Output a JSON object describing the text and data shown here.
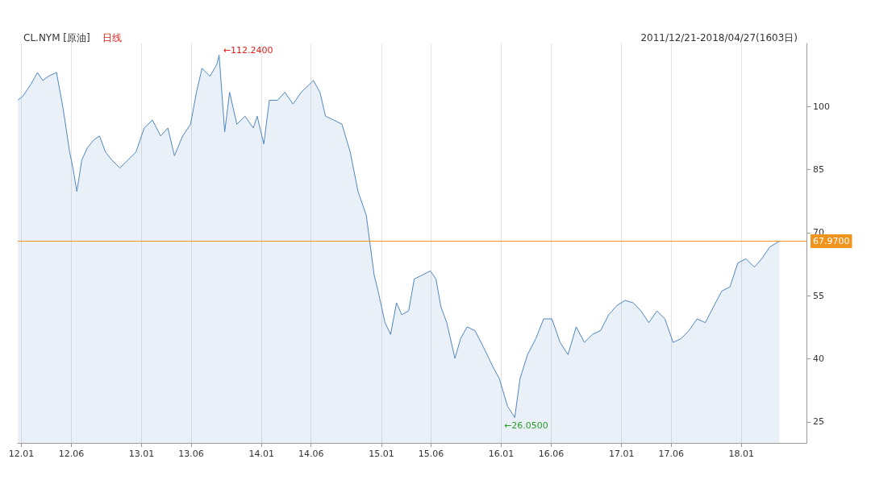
{
  "chart_data": {
    "type": "area",
    "title": "CL.NYM [原油]",
    "subtitle": "日线",
    "annotations": [
      "2011/12/21-2018/04/27(1603日)",
      {
        "text": "←112.2400",
        "x": "2013-08-25",
        "y": 112.24
      },
      {
        "text": "←26.0500",
        "x": "2016-02-11",
        "y": 26.05
      }
    ],
    "x": [
      "2011-12-21",
      "2012-01-06",
      "2012-01-30",
      "2012-02-19",
      "2012-03-06",
      "2012-03-23",
      "2012-04-17",
      "2012-05-07",
      "2012-05-27",
      "2012-06-06",
      "2012-06-18",
      "2012-07-03",
      "2012-07-20",
      "2012-08-09",
      "2012-08-26",
      "2012-09-13",
      "2012-10-02",
      "2012-10-27",
      "2012-11-21",
      "2012-12-15",
      "2013-01-09",
      "2013-02-03",
      "2013-02-28",
      "2013-03-22",
      "2013-04-11",
      "2013-05-06",
      "2013-05-30",
      "2013-06-17",
      "2013-07-04",
      "2013-07-28",
      "2013-08-18",
      "2013-08-25",
      "2013-09-11",
      "2013-09-26",
      "2013-10-18",
      "2013-11-12",
      "2013-12-07",
      "2013-12-19",
      "2014-01-08",
      "2014-01-25",
      "2014-02-19",
      "2014-03-13",
      "2014-04-07",
      "2014-05-02",
      "2014-06-08",
      "2014-06-28",
      "2014-07-15",
      "2014-08-09",
      "2014-09-03",
      "2014-09-28",
      "2014-10-22",
      "2014-11-16",
      "2014-12-10",
      "2014-12-22",
      "2015-01-12",
      "2015-01-29",
      "2015-02-16",
      "2015-03-04",
      "2015-03-25",
      "2015-04-11",
      "2015-05-05",
      "2015-05-30",
      "2015-06-16",
      "2015-07-01",
      "2015-07-19",
      "2015-08-13",
      "2015-08-30",
      "2015-09-19",
      "2015-10-13",
      "2015-11-07",
      "2015-12-06",
      "2015-12-26",
      "2016-01-20",
      "2016-02-11",
      "2016-02-27",
      "2016-03-21",
      "2016-04-15",
      "2016-05-09",
      "2016-06-03",
      "2016-06-28",
      "2016-07-22",
      "2016-08-16",
      "2016-09-10",
      "2016-10-04",
      "2016-10-29",
      "2016-11-23",
      "2016-12-18",
      "2017-01-12",
      "2017-02-06",
      "2017-03-01",
      "2017-03-25",
      "2017-04-19",
      "2017-05-13",
      "2017-06-07",
      "2017-07-01",
      "2017-07-25",
      "2017-08-19",
      "2017-09-13",
      "2017-10-08",
      "2017-11-02",
      "2017-11-27",
      "2017-12-21",
      "2018-01-15",
      "2018-02-09",
      "2018-03-04",
      "2018-03-28",
      "2018-04-27"
    ],
    "series": [
      {
        "color": "#4f86c0",
        "values": [
          101.5,
          102.5,
          105.3,
          108.1,
          106.2,
          107.2,
          108.1,
          99.6,
          89.2,
          85.4,
          79.8,
          87.3,
          90.2,
          92.1,
          93,
          89.2,
          87.3,
          85.4,
          87.3,
          89.2,
          94.9,
          96.8,
          93,
          94.9,
          88.3,
          93,
          95.8,
          103.4,
          109.1,
          107.2,
          110,
          112.24,
          94,
          103.4,
          95.8,
          97.7,
          94.9,
          97.7,
          91.1,
          101.5,
          101.5,
          103.4,
          100.6,
          103.4,
          106.2,
          103.4,
          97.7,
          96.8,
          95.8,
          89.2,
          79.8,
          74.1,
          59.9,
          56.1,
          48.6,
          45.8,
          53.3,
          50.5,
          51.4,
          59,
          59.9,
          60.9,
          59,
          52.4,
          48.6,
          40.1,
          44.8,
          47.6,
          46.7,
          42.9,
          38.2,
          35.3,
          28.7,
          26.05,
          35.3,
          41,
          44.8,
          49.5,
          49.5,
          43.9,
          41,
          47.6,
          43.9,
          45.8,
          46.7,
          50.5,
          52.7,
          53.9,
          53.3,
          51.4,
          48.6,
          51.4,
          49.5,
          43.9,
          44.8,
          46.7,
          49.5,
          48.6,
          52.4,
          56.1,
          57.1,
          62.8,
          63.8,
          61.8,
          63.8,
          66.6,
          67.97
        ]
      }
    ],
    "xlim": [
      "2011-12-21",
      "2018-07-18"
    ],
    "xticks": [
      {
        "value": "2012-01-01",
        "label": "12.01"
      },
      {
        "value": "2012-06-01",
        "label": "12.06"
      },
      {
        "value": "2013-01-01",
        "label": "13.01"
      },
      {
        "value": "2013-06-01",
        "label": "13.06"
      },
      {
        "value": "2014-01-01",
        "label": "14.01"
      },
      {
        "value": "2014-06-01",
        "label": "14.06"
      },
      {
        "value": "2015-01-01",
        "label": "15.01"
      },
      {
        "value": "2015-06-01",
        "label": "15.06"
      },
      {
        "value": "2016-01-01",
        "label": "16.01"
      },
      {
        "value": "2016-06-01",
        "label": "16.06"
      },
      {
        "value": "2017-01-01",
        "label": "17.01"
      },
      {
        "value": "2017-06-01",
        "label": "17.06"
      },
      {
        "value": "2018-01-01",
        "label": "18.01"
      }
    ],
    "ylim": [
      20,
      115
    ],
    "yticks": [
      25,
      40,
      55,
      70,
      85,
      100
    ],
    "ref_lines": [
      {
        "axis": "y",
        "value": 67.97,
        "label": "67.9700",
        "color": "#f0941e"
      }
    ],
    "grid": "x"
  }
}
